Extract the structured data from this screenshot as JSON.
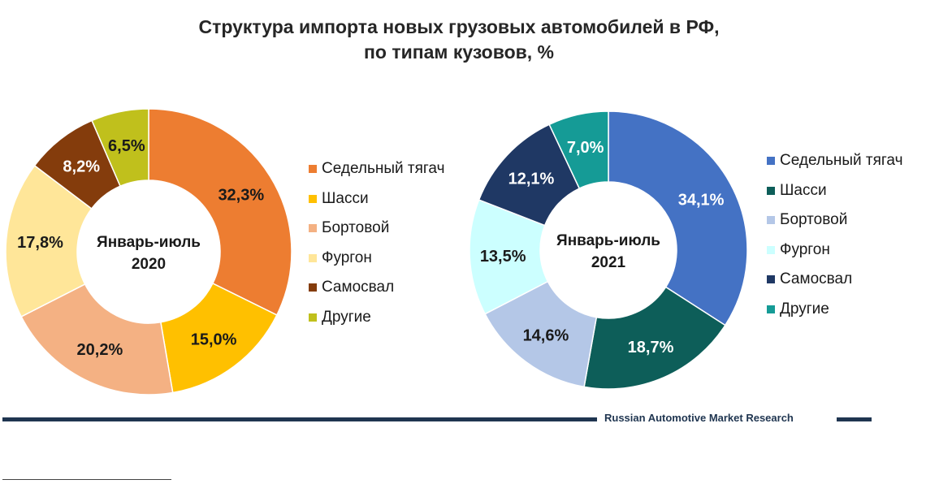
{
  "title": {
    "line1": "Структура импорта новых грузовых автомобилей в РФ,",
    "line2": "по типам кузовов, %"
  },
  "chart_data": [
    {
      "type": "pie",
      "variant": "donut",
      "center_label": [
        "Январь-июль",
        "2020"
      ],
      "categories": [
        "Седельный тягач",
        "Шасси",
        "Бортовой",
        "Фургон",
        "Самосвал",
        "Другие"
      ],
      "values": [
        32.3,
        15.0,
        20.2,
        17.8,
        8.2,
        6.5
      ],
      "value_labels": [
        "32,3%",
        "15,0%",
        "20,2%",
        "17,8%",
        "8,2%",
        "6,5%"
      ],
      "colors": [
        "#ED7D31",
        "#FFC000",
        "#F4B183",
        "#FFE699",
        "#843C0C",
        "#C0C01C"
      ],
      "label_colors": [
        "#1a1a1a",
        "#1a1a1a",
        "#1a1a1a",
        "#1a1a1a",
        "#ffffff",
        "#1a1a1a"
      ],
      "legend_position": "right"
    },
    {
      "type": "pie",
      "variant": "donut",
      "center_label": [
        "Январь-июль",
        "2021"
      ],
      "categories": [
        "Седельный тягач",
        "Шасси",
        "Бортовой",
        "Фургон",
        "Самосвал",
        "Другие"
      ],
      "values": [
        34.1,
        18.7,
        14.6,
        13.5,
        12.1,
        7.0
      ],
      "value_labels": [
        "34,1%",
        "18,7%",
        "14,6%",
        "13,5%",
        "12,1%",
        "7,0%"
      ],
      "colors": [
        "#4472C4",
        "#0D5E59",
        "#B4C7E7",
        "#CCFFFF",
        "#1F3864",
        "#159B96"
      ],
      "label_colors": [
        "#ffffff",
        "#ffffff",
        "#1a1a1a",
        "#1a1a1a",
        "#ffffff",
        "#ffffff"
      ],
      "legend_position": "right"
    }
  ],
  "footer": {
    "source": "Russian Automotive Market Research"
  }
}
